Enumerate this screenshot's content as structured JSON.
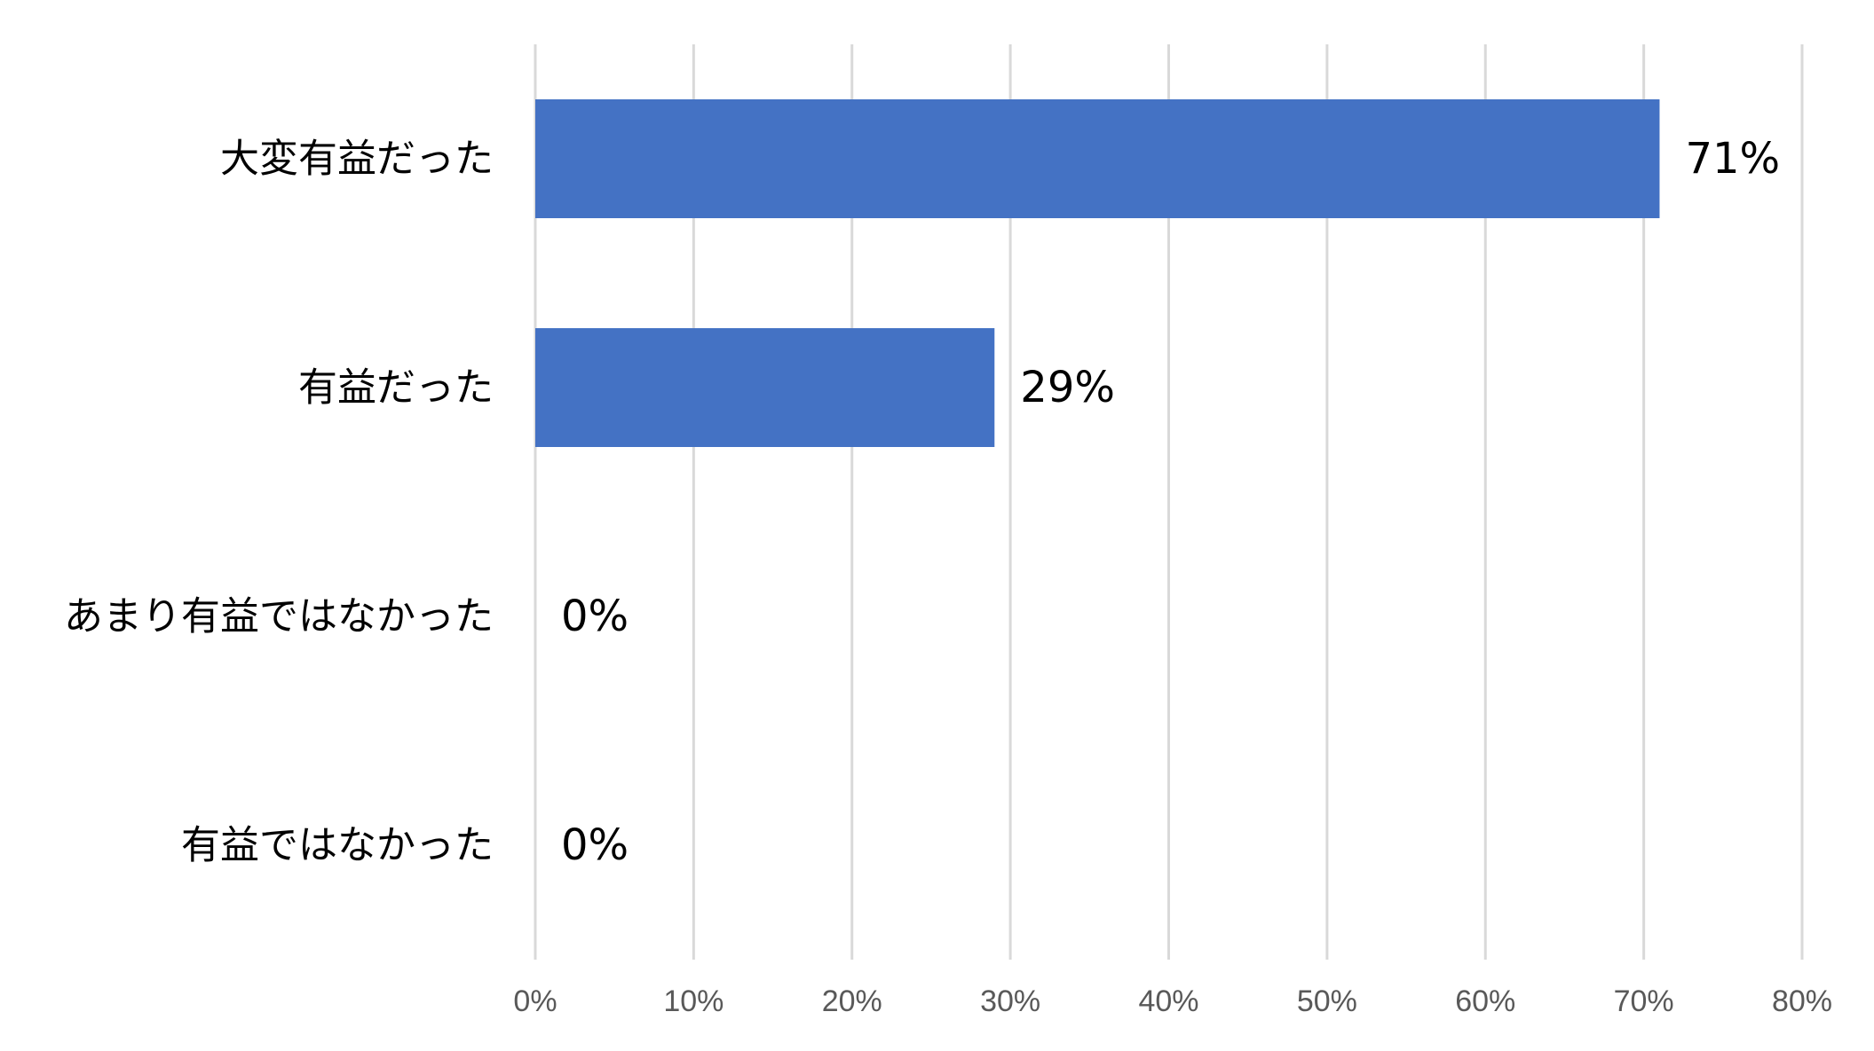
{
  "chart_data": {
    "type": "bar",
    "orientation": "horizontal",
    "categories": [
      "大変有益だった",
      "有益だった",
      "あまり有益ではなかった",
      "有益ではなかった"
    ],
    "values": [
      71,
      29,
      0,
      0
    ],
    "data_labels": [
      "71%",
      "29%",
      "0%",
      "0%"
    ],
    "xlim": [
      0,
      80
    ],
    "x_ticks": [
      0,
      10,
      20,
      30,
      40,
      50,
      60,
      70,
      80
    ],
    "x_tick_labels": [
      "0%",
      "10%",
      "20%",
      "30%",
      "40%",
      "50%",
      "60%",
      "70%",
      "80%"
    ],
    "title": "",
    "xlabel": "",
    "ylabel": "",
    "grid": "vertical",
    "legend": "none",
    "bar_color": "#4472C4",
    "grid_color": "#D9D9D9",
    "tick_label_color": "#595959"
  }
}
